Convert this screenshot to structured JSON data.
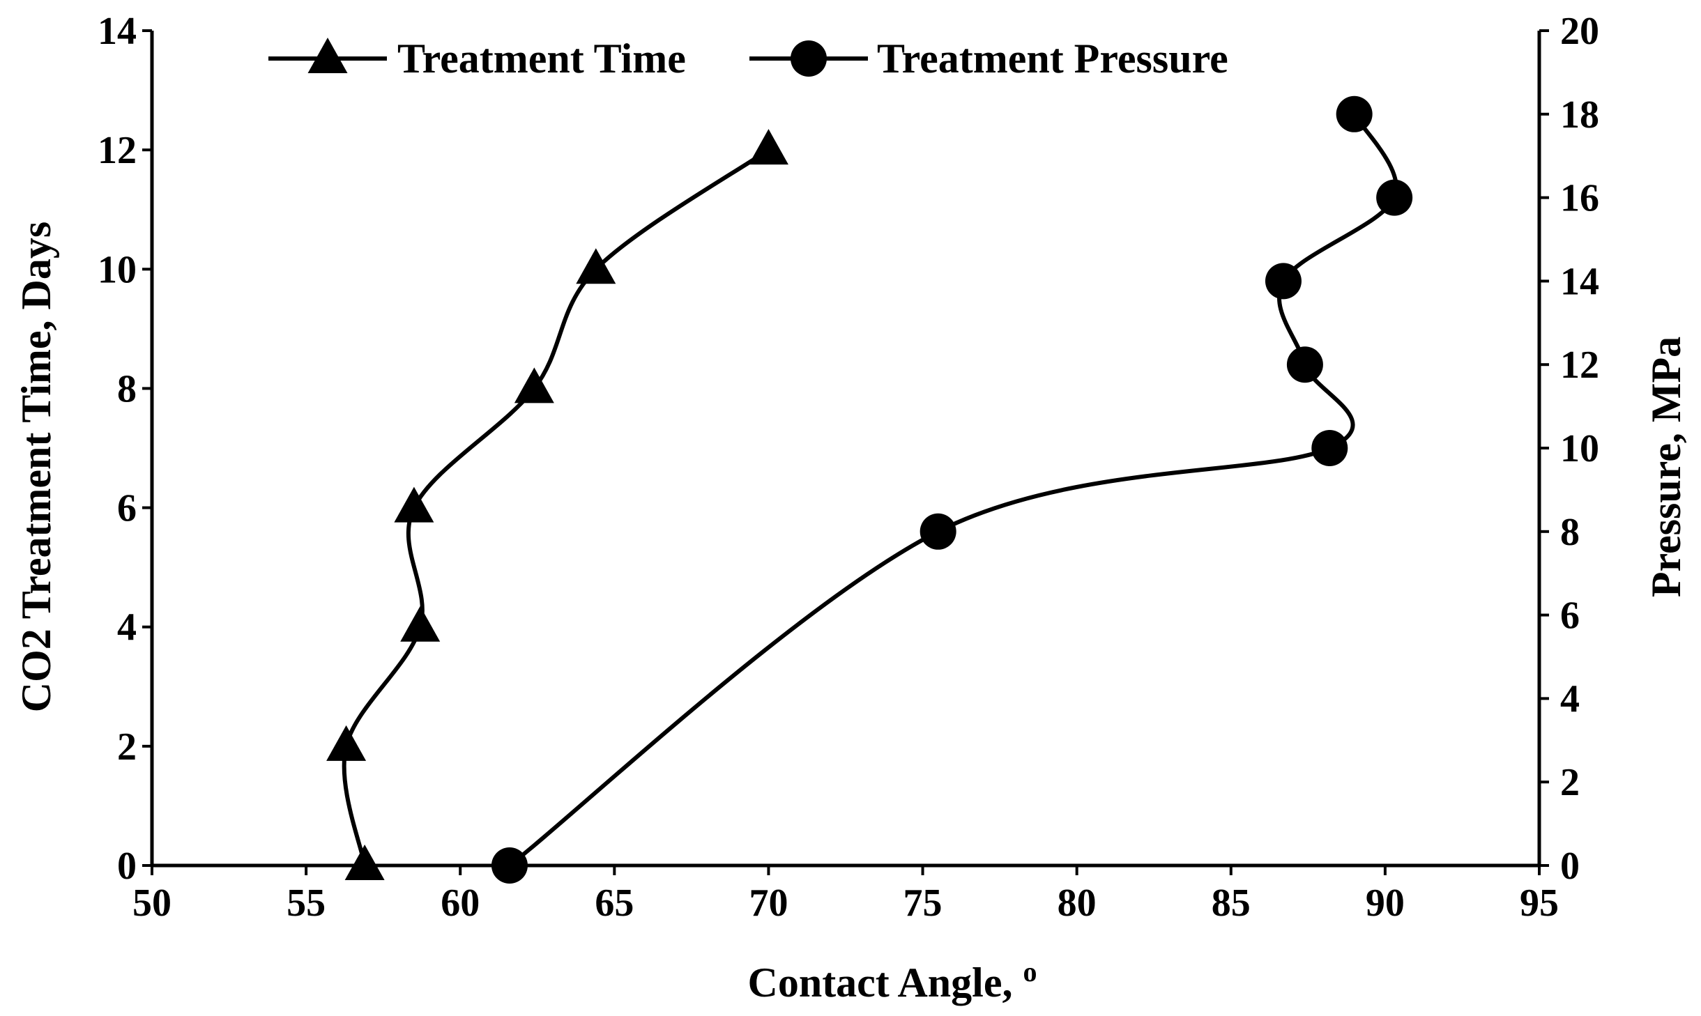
{
  "chart_data": {
    "type": "line",
    "title": "",
    "xlabel": "Contact Angle, ",
    "xlabel_superscript": "o",
    "ylabel": "CO2 Treatment Time, Days",
    "y2label": "Pressure, MPa",
    "xlim": [
      50,
      95
    ],
    "ylim": [
      0,
      14
    ],
    "y2lim": [
      0,
      20
    ],
    "xticks": [
      "50",
      "55",
      "60",
      "65",
      "70",
      "75",
      "80",
      "85",
      "90",
      "95"
    ],
    "yticks": [
      "0",
      "2",
      "4",
      "6",
      "8",
      "10",
      "12",
      "14"
    ],
    "y2ticks": [
      "0",
      "2",
      "4",
      "6",
      "8",
      "10",
      "12",
      "14",
      "16",
      "18",
      "20"
    ],
    "grid": false,
    "legend_position": "top",
    "series": [
      {
        "name": "Treatment Time",
        "marker": "triangle",
        "axis": "left",
        "x": [
          56.9,
          56.3,
          58.7,
          58.5,
          62.4,
          64.4,
          70.0
        ],
        "y": [
          0,
          2,
          4,
          6,
          8,
          10,
          12
        ]
      },
      {
        "name": "Treatment Pressure",
        "marker": "circle",
        "axis": "right",
        "x": [
          61.6,
          75.5,
          88.2,
          87.4,
          86.7,
          90.3,
          89.0
        ],
        "y": [
          0,
          8,
          10,
          12,
          14,
          16,
          18
        ]
      }
    ],
    "color": "#000000"
  }
}
